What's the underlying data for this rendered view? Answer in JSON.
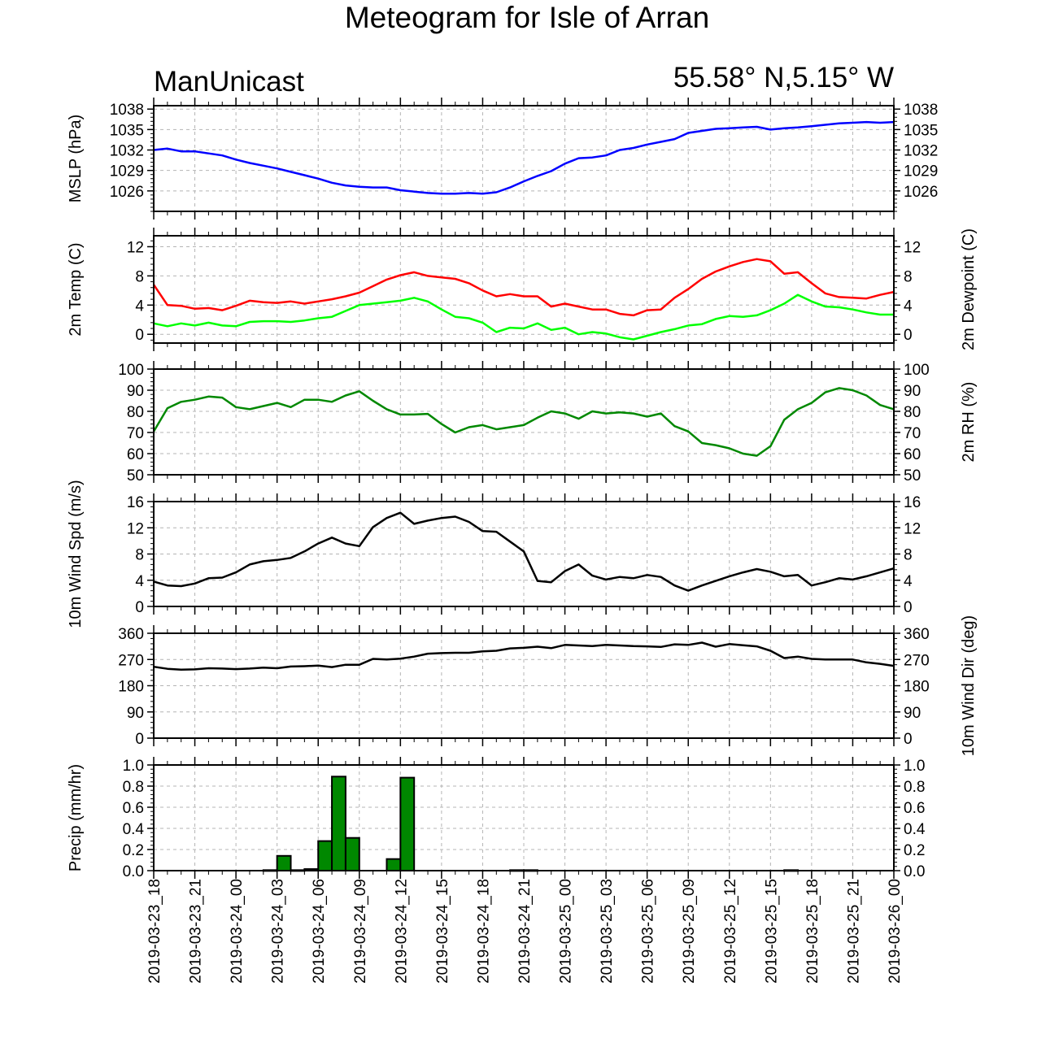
{
  "title": "Meteogram for Isle of Arran",
  "model": "ManUnicast",
  "location": "55.58° N,5.15° W",
  "x_tick_labels": [
    "2019-03-23_18",
    "2019-03-23_21",
    "2019-03-24_00",
    "2019-03-24_03",
    "2019-03-24_06",
    "2019-03-24_09",
    "2019-03-24_12",
    "2019-03-24_15",
    "2019-03-24_18",
    "2019-03-24_21",
    "2019-03-25_00",
    "2019-03-25_03",
    "2019-03-25_06",
    "2019-03-25_09",
    "2019-03-25_12",
    "2019-03-25_15",
    "2019-03-25_18",
    "2019-03-25_21",
    "2019-03-26_00"
  ],
  "chart_data": [
    {
      "type": "line",
      "ylabel_left": "MSLP (hPa)",
      "ylabel_right": "",
      "ylim": [
        1023,
        1038.5
      ],
      "yticks": [
        1026,
        1029,
        1032,
        1035,
        1038
      ],
      "x_unit": "hours since 2019-03-23_18",
      "grid": true,
      "series": [
        {
          "name": "",
          "color": "#0000ff",
          "x": [
            0,
            1,
            2,
            3,
            4,
            5,
            6,
            7,
            8,
            9,
            10,
            11,
            12,
            13,
            14,
            15,
            16,
            17,
            18,
            19,
            20,
            21,
            22,
            23,
            24,
            25,
            26,
            27,
            28,
            29,
            30,
            31,
            32,
            33,
            34,
            35,
            36,
            37,
            38,
            39,
            40,
            41,
            42,
            43,
            44,
            45,
            46,
            47,
            48,
            49,
            50,
            51,
            52,
            53,
            54
          ],
          "values": [
            1032.0,
            1032.2,
            1031.8,
            1031.8,
            1031.5,
            1031.2,
            1030.6,
            1030.1,
            1029.7,
            1029.3,
            1028.8,
            1028.3,
            1027.8,
            1027.2,
            1026.8,
            1026.6,
            1026.5,
            1026.5,
            1026.1,
            1025.9,
            1025.7,
            1025.6,
            1025.6,
            1025.7,
            1025.6,
            1025.8,
            1026.5,
            1027.4,
            1028.2,
            1028.9,
            1030.0,
            1030.8,
            1030.9,
            1031.2,
            1032.0,
            1032.3,
            1032.8,
            1033.2,
            1033.6,
            1034.5,
            1034.8,
            1035.1,
            1035.2,
            1035.3,
            1035.4,
            1035.0,
            1035.2,
            1035.3,
            1035.5,
            1035.7,
            1035.9,
            1036.0,
            1036.1,
            1036.0,
            1036.1
          ]
        }
      ]
    },
    {
      "type": "line",
      "ylabel_left": "2m Temp (C)",
      "ylabel_right": "2m Dewpoint (C)",
      "ylim": [
        -1.2,
        13.5
      ],
      "yticks": [
        0,
        4,
        8,
        12
      ],
      "x_unit": "hours since 2019-03-23_18",
      "grid": true,
      "series": [
        {
          "name": "",
          "color": "#ff0000",
          "x": [
            0,
            1,
            2,
            3,
            4,
            5,
            6,
            7,
            8,
            9,
            10,
            11,
            12,
            13,
            14,
            15,
            16,
            17,
            18,
            19,
            20,
            21,
            22,
            23,
            24,
            25,
            26,
            27,
            28,
            29,
            30,
            31,
            32,
            33,
            34,
            35,
            36,
            37,
            38,
            39,
            40,
            41,
            42,
            43,
            44,
            45,
            46,
            47,
            48,
            49,
            50,
            51,
            52,
            53,
            54
          ],
          "values": [
            6.8,
            4.0,
            3.9,
            3.5,
            3.6,
            3.3,
            3.9,
            4.6,
            4.4,
            4.3,
            4.5,
            4.2,
            4.5,
            4.8,
            5.2,
            5.7,
            6.6,
            7.5,
            8.1,
            8.5,
            8.0,
            7.8,
            7.6,
            7.0,
            6.0,
            5.2,
            5.5,
            5.2,
            5.2,
            3.8,
            4.2,
            3.8,
            3.4,
            3.4,
            2.8,
            2.6,
            3.3,
            3.4,
            5.0,
            6.2,
            7.6,
            8.6,
            9.3,
            9.9,
            10.3,
            10.0,
            8.3,
            8.5,
            7.0,
            5.6,
            5.1,
            5.0,
            4.9,
            5.4,
            5.8
          ]
        },
        {
          "name": "",
          "color": "#00ff00",
          "x": [
            0,
            1,
            2,
            3,
            4,
            5,
            6,
            7,
            8,
            9,
            10,
            11,
            12,
            13,
            14,
            15,
            16,
            17,
            18,
            19,
            20,
            21,
            22,
            23,
            24,
            25,
            26,
            27,
            28,
            29,
            30,
            31,
            32,
            33,
            34,
            35,
            36,
            37,
            38,
            39,
            40,
            41,
            42,
            43,
            44,
            45,
            46,
            47,
            48,
            49,
            50,
            51,
            52,
            53,
            54
          ],
          "values": [
            1.5,
            1.1,
            1.5,
            1.2,
            1.6,
            1.2,
            1.1,
            1.7,
            1.8,
            1.8,
            1.7,
            1.9,
            2.2,
            2.4,
            3.2,
            4.0,
            4.2,
            4.4,
            4.6,
            5.0,
            4.5,
            3.4,
            2.4,
            2.2,
            1.6,
            0.3,
            0.9,
            0.8,
            1.5,
            0.6,
            0.9,
            0.0,
            0.3,
            0.1,
            -0.4,
            -0.7,
            -0.2,
            0.3,
            0.7,
            1.2,
            1.4,
            2.1,
            2.5,
            2.4,
            2.6,
            3.3,
            4.2,
            5.4,
            4.5,
            3.8,
            3.7,
            3.4,
            3.0,
            2.7,
            2.7
          ]
        }
      ]
    },
    {
      "type": "line",
      "ylabel_left": "",
      "ylabel_right": "2m RH (%)",
      "ylim": [
        50,
        100
      ],
      "yticks": [
        50,
        60,
        70,
        80,
        90,
        100
      ],
      "x_unit": "hours since 2019-03-23_18",
      "grid": true,
      "series": [
        {
          "name": "",
          "color": "#008800",
          "x": [
            0,
            1,
            2,
            3,
            4,
            5,
            6,
            7,
            8,
            9,
            10,
            11,
            12,
            13,
            14,
            15,
            16,
            17,
            18,
            19,
            20,
            21,
            22,
            23,
            24,
            25,
            26,
            27,
            28,
            29,
            30,
            31,
            32,
            33,
            34,
            35,
            36,
            37,
            38,
            39,
            40,
            41,
            42,
            43,
            44,
            45,
            46,
            47,
            48,
            49,
            50,
            51,
            52,
            53,
            54
          ],
          "values": [
            70.5,
            81.5,
            84.5,
            85.5,
            87,
            86.5,
            82,
            81,
            82.5,
            84,
            82,
            85.5,
            85.5,
            84.5,
            87.5,
            89.5,
            85,
            81,
            78.5,
            78.5,
            78.8,
            74,
            70,
            72.5,
            73.5,
            71.5,
            72.5,
            73.5,
            77,
            80,
            79,
            76.5,
            80,
            79,
            79.5,
            79,
            77.5,
            79,
            73,
            70.5,
            65,
            64,
            62.5,
            60,
            59,
            63.5,
            76,
            81,
            84,
            89,
            91,
            90,
            87.5,
            83,
            81
          ]
        }
      ]
    },
    {
      "type": "line",
      "ylabel_left": "10m Wind Spd (m/s)",
      "ylabel_right": "",
      "ylim": [
        0,
        16
      ],
      "yticks": [
        0,
        4,
        8,
        12,
        16
      ],
      "x_unit": "hours since 2019-03-23_18",
      "grid": true,
      "series": [
        {
          "name": "",
          "color": "#000000",
          "x": [
            0,
            1,
            2,
            3,
            4,
            5,
            6,
            7,
            8,
            9,
            10,
            11,
            12,
            13,
            14,
            15,
            16,
            17,
            18,
            19,
            20,
            21,
            22,
            23,
            24,
            25,
            26,
            27,
            28,
            29,
            30,
            31,
            32,
            33,
            34,
            35,
            36,
            37,
            38,
            39,
            40,
            41,
            42,
            43,
            44,
            45,
            46,
            47,
            48,
            49,
            50,
            51,
            52,
            53,
            54
          ],
          "values": [
            3.8,
            3.2,
            3.1,
            3.5,
            4.3,
            4.4,
            5.2,
            6.4,
            6.9,
            7.1,
            7.4,
            8.4,
            9.6,
            10.5,
            9.6,
            9.2,
            12.1,
            13.5,
            14.3,
            12.6,
            13.1,
            13.5,
            13.7,
            12.9,
            11.5,
            11.4,
            9.9,
            8.4,
            3.9,
            3.7,
            5.4,
            6.4,
            4.7,
            4.1,
            4.5,
            4.3,
            4.8,
            4.5,
            3.2,
            2.4,
            3.2,
            3.9,
            4.6,
            5.2,
            5.7,
            5.3,
            4.6,
            4.8,
            3.2,
            3.7,
            4.3,
            4.1,
            4.6,
            5.2,
            5.8
          ]
        }
      ]
    },
    {
      "type": "line",
      "ylabel_left": "",
      "ylabel_right": "10m Wind Dir (deg)",
      "ylim": [
        0,
        360
      ],
      "yticks": [
        0,
        90,
        180,
        270,
        360
      ],
      "x_unit": "hours since 2019-03-23_18",
      "grid": true,
      "series": [
        {
          "name": "",
          "color": "#000000",
          "x": [
            0,
            1,
            2,
            3,
            4,
            5,
            6,
            7,
            8,
            9,
            10,
            11,
            12,
            13,
            14,
            15,
            16,
            17,
            18,
            19,
            20,
            21,
            22,
            23,
            24,
            25,
            26,
            27,
            28,
            29,
            30,
            31,
            32,
            33,
            34,
            35,
            36,
            37,
            38,
            39,
            40,
            41,
            42,
            43,
            44,
            45,
            46,
            47,
            48,
            49,
            50,
            51,
            52,
            53,
            54
          ],
          "values": [
            245,
            238,
            235,
            236,
            240,
            239,
            237,
            239,
            242,
            240,
            246,
            247,
            249,
            244,
            252,
            252,
            272,
            270,
            273,
            280,
            290,
            292,
            293,
            293,
            298,
            300,
            308,
            310,
            314,
            309,
            320,
            318,
            316,
            320,
            318,
            316,
            315,
            313,
            322,
            320,
            328,
            314,
            323,
            319,
            315,
            300,
            275,
            280,
            272,
            270,
            270,
            270,
            260,
            255,
            248
          ]
        }
      ]
    },
    {
      "type": "bar",
      "ylabel_left": "Precip (mm/hr)",
      "ylabel_right": "",
      "ylim": [
        0,
        1.0
      ],
      "yticks": [
        0.0,
        0.2,
        0.4,
        0.6,
        0.8,
        1.0
      ],
      "x_unit": "hours since 2019-03-23_18",
      "grid": true,
      "bar_color": "#008800",
      "x": [
        9,
        10,
        11,
        12,
        13,
        14,
        15,
        18,
        19,
        27,
        28,
        47
      ],
      "values": [
        0.005,
        0.14,
        0.005,
        0.015,
        0.28,
        0.89,
        0.31,
        0.11,
        0.88,
        0.005,
        0.005,
        0.005
      ]
    }
  ]
}
